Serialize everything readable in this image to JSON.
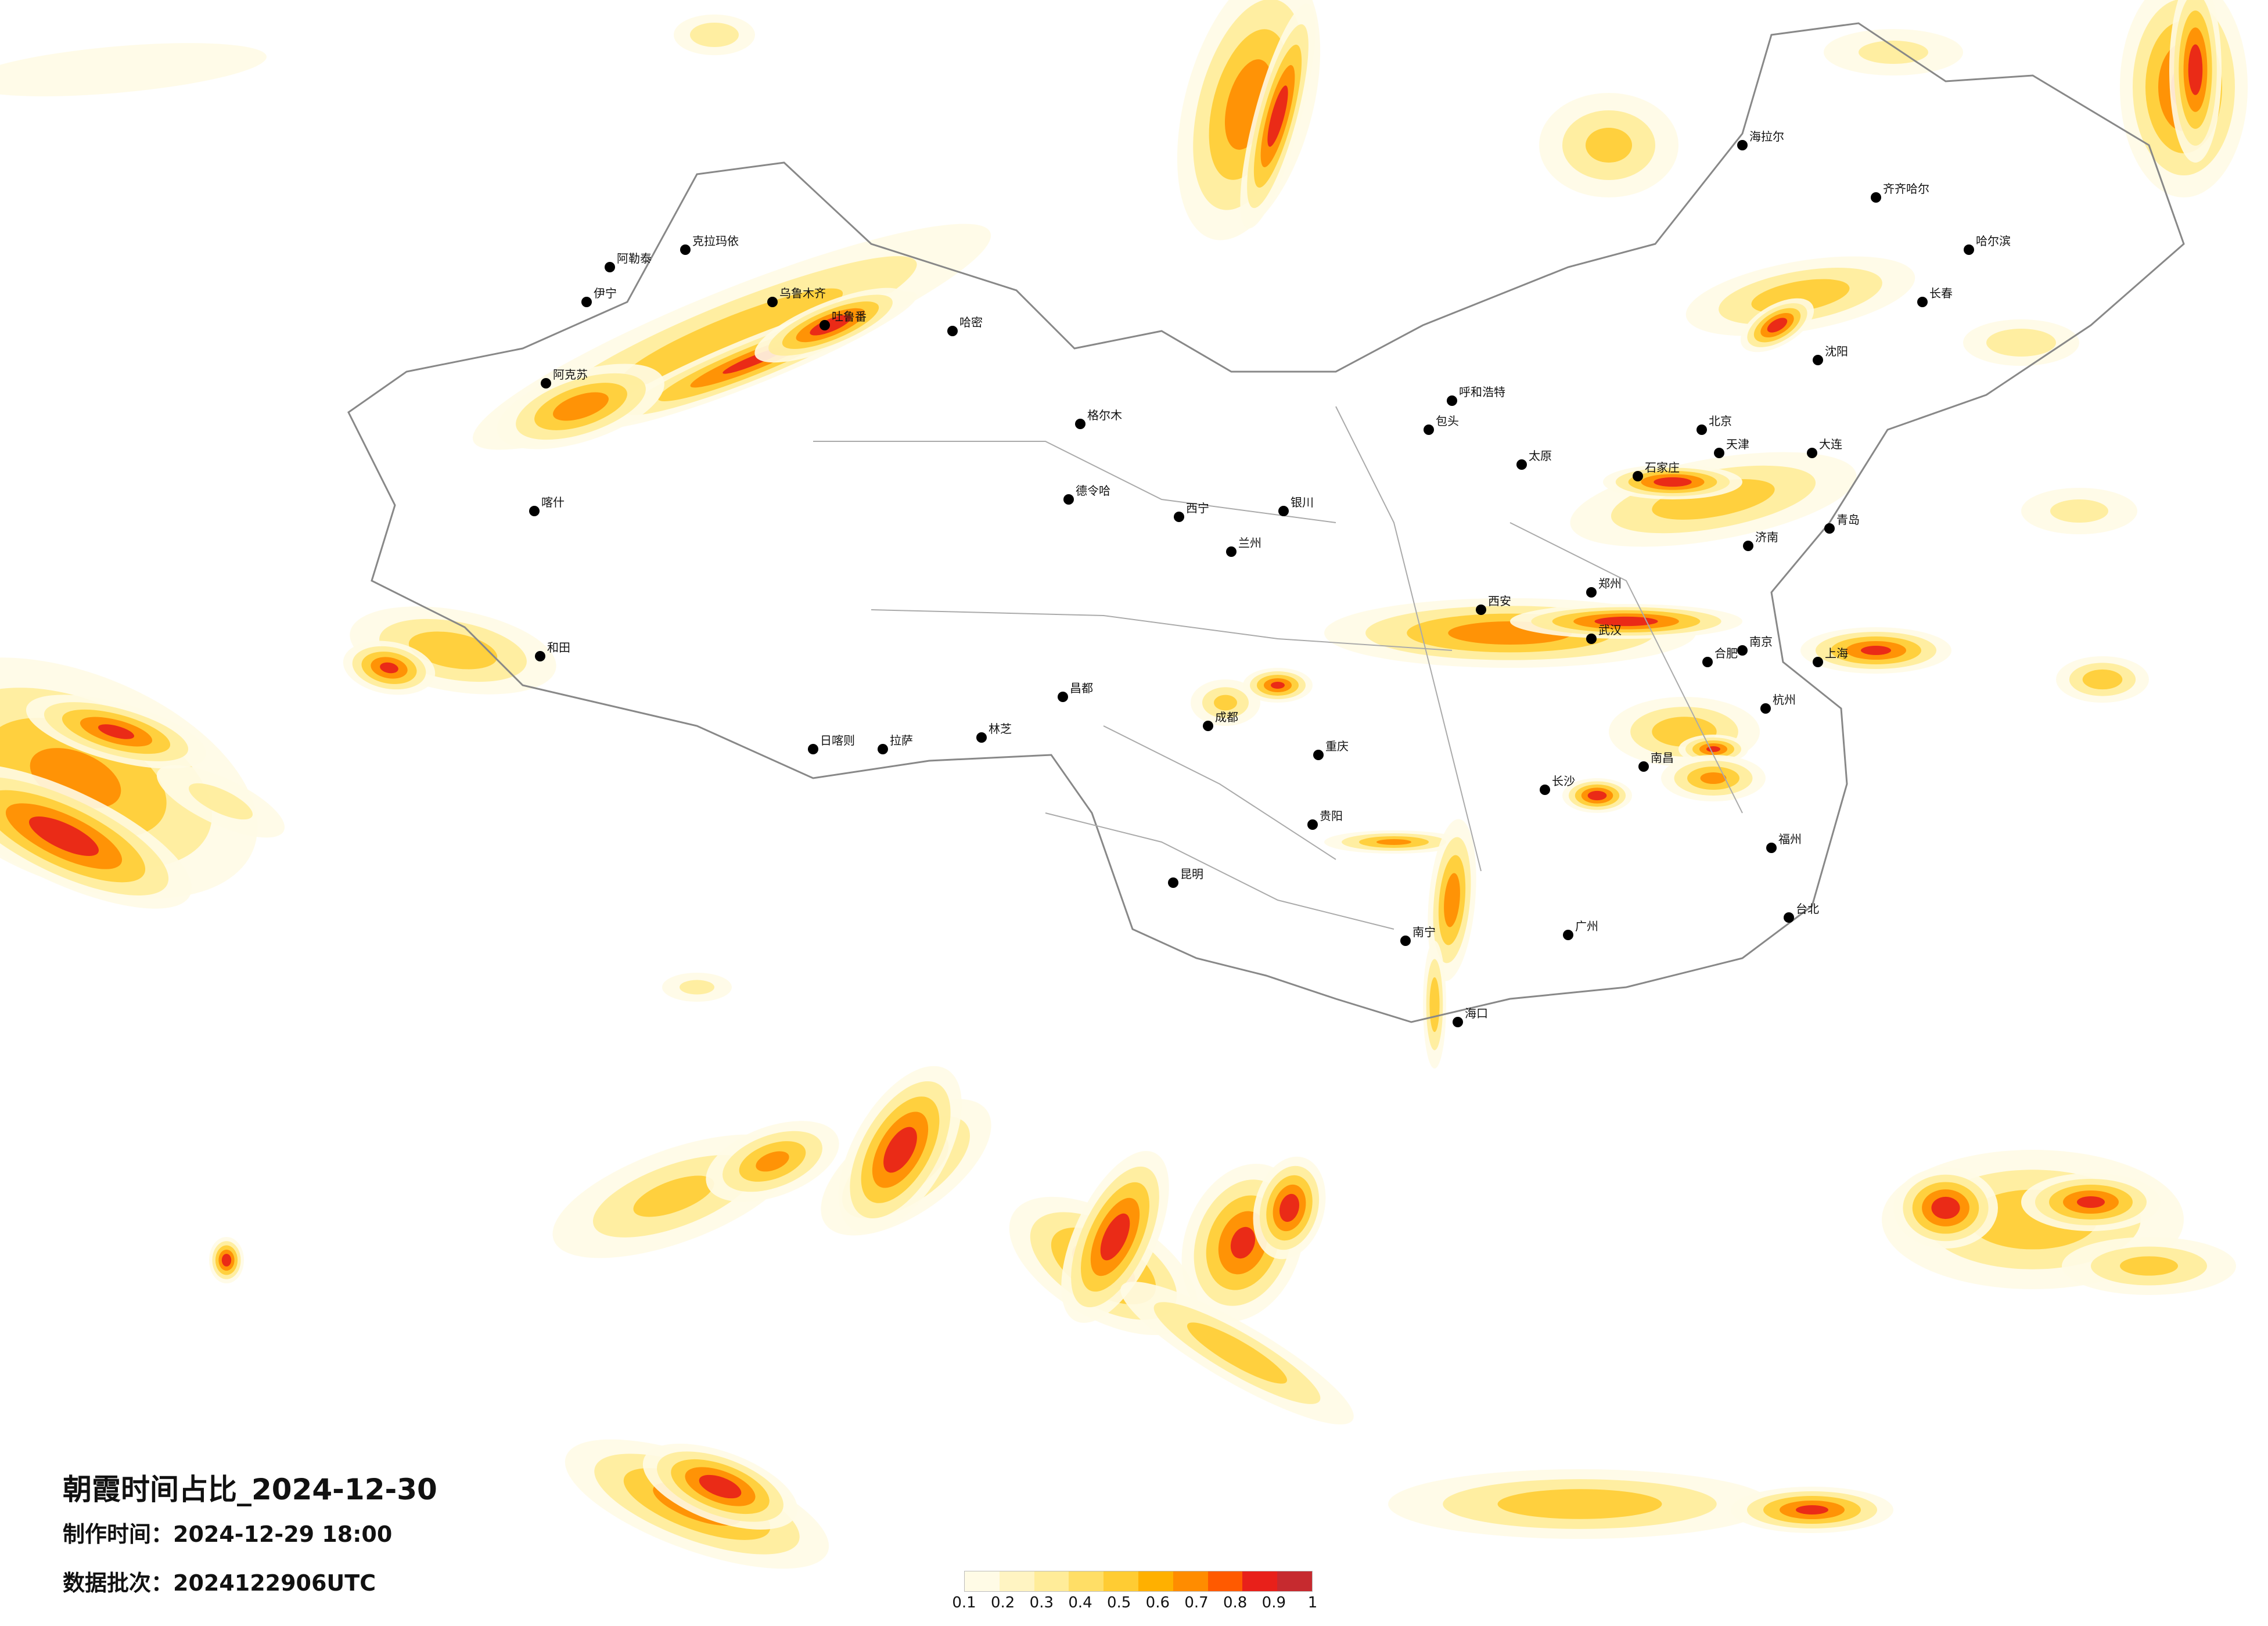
{
  "title": "朝霞时间占比_2024-12-30",
  "produced_label": "制作时间：",
  "produced_value": "2024-12-29 18:00",
  "batch_label": "数据批次：",
  "batch_value": "2024122906UTC",
  "chart_data": {
    "type": "heatmap",
    "title": "朝霞时间占比_2024-12-30",
    "colorbar": {
      "ticks": [
        "0.1",
        "0.2",
        "0.3",
        "0.4",
        "0.5",
        "0.6",
        "0.7",
        "0.8",
        "0.9",
        "1"
      ],
      "colors": [
        "#fffbe6",
        "#fff4c2",
        "#ffec99",
        "#ffde66",
        "#ffcc33",
        "#ffb000",
        "#ff8c00",
        "#ff5a00",
        "#e8201a",
        "#c62a2f"
      ]
    },
    "cities": [
      {
        "name": "克拉玛依"
      },
      {
        "name": "阿勒泰"
      },
      {
        "name": "伊宁"
      },
      {
        "name": "乌鲁木齐"
      },
      {
        "name": "吐鲁番"
      },
      {
        "name": "阿克苏"
      },
      {
        "name": "喀什"
      },
      {
        "name": "和田"
      },
      {
        "name": "哈密"
      },
      {
        "name": "格尔木"
      },
      {
        "name": "德令哈"
      },
      {
        "name": "西宁"
      },
      {
        "name": "兰州"
      },
      {
        "name": "银川"
      },
      {
        "name": "拉萨"
      },
      {
        "name": "日喀则"
      },
      {
        "name": "林芝"
      },
      {
        "name": "昌都"
      },
      {
        "name": "成都"
      },
      {
        "name": "重庆"
      },
      {
        "name": "贵阳"
      },
      {
        "name": "昆明"
      },
      {
        "name": "南宁"
      },
      {
        "name": "广州"
      },
      {
        "name": "海口"
      },
      {
        "name": "长沙"
      },
      {
        "name": "武汉"
      },
      {
        "name": "郑州"
      },
      {
        "name": "西安"
      },
      {
        "name": "太原"
      },
      {
        "name": "石家庄"
      },
      {
        "name": "北京"
      },
      {
        "name": "天津"
      },
      {
        "name": "济南"
      },
      {
        "name": "南京"
      },
      {
        "name": "上海"
      },
      {
        "name": "杭州"
      },
      {
        "name": "福州"
      },
      {
        "name": "台北"
      },
      {
        "name": "南昌"
      },
      {
        "name": "合肥"
      },
      {
        "name": "呼和浩特"
      },
      {
        "name": "包头"
      },
      {
        "name": "沈阳"
      },
      {
        "name": "长春"
      },
      {
        "name": "哈尔滨"
      },
      {
        "name": "齐齐哈尔"
      },
      {
        "name": "海拉尔"
      },
      {
        "name": "大连"
      },
      {
        "name": "青岛"
      }
    ]
  }
}
